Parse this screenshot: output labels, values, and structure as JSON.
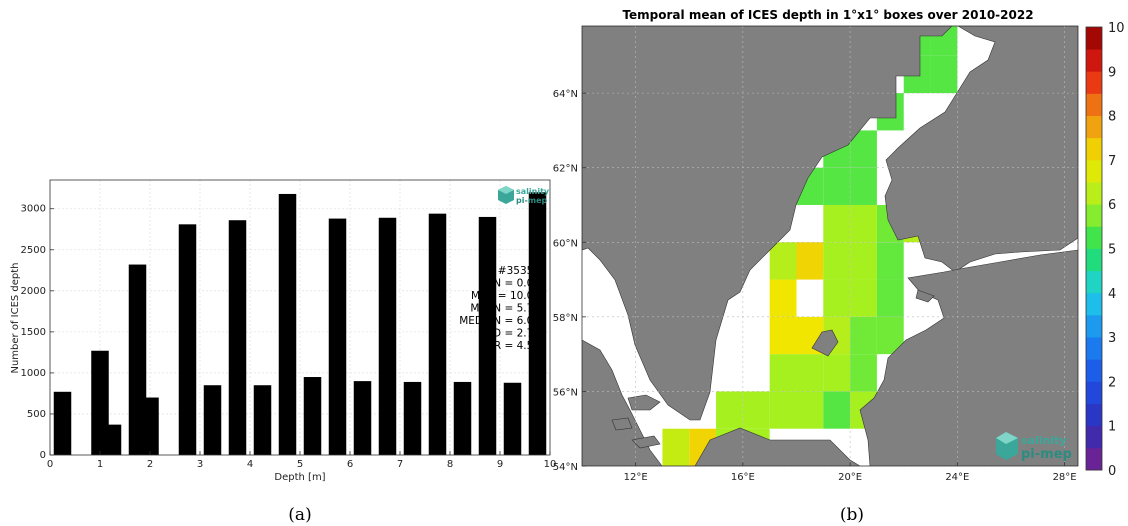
{
  "chart_data": [
    {
      "type": "bar",
      "xlabel": "Depth [m]",
      "ylabel": "Number of ICES depth",
      "xlim": [
        0,
        10
      ],
      "ylim": [
        0,
        3350
      ],
      "x_ticks": [
        "0",
        "1",
        "2",
        "3",
        "4",
        "5",
        "6",
        "7",
        "8",
        "9",
        "10"
      ],
      "y_ticks": [
        "0",
        "500",
        "1000",
        "1500",
        "2000",
        "2500",
        "3000"
      ],
      "grid": true,
      "bar_width": 0.35,
      "bins_center": [
        0.25,
        1.0,
        1.25,
        1.75,
        2.0,
        2.75,
        3.25,
        3.75,
        4.25,
        4.75,
        5.25,
        5.75,
        6.25,
        6.75,
        7.25,
        7.75,
        8.25,
        8.75,
        9.25,
        9.75
      ],
      "values": [
        770,
        1270,
        370,
        2320,
        700,
        2810,
        850,
        2860,
        850,
        3180,
        950,
        2880,
        900,
        2890,
        890,
        2940,
        890,
        2900,
        880,
        3200
      ],
      "stats": [
        "#35355",
        "MIN = 0.00",
        "MAX = 10.00",
        "MEAN = 5.74",
        "MEDIAN = 6.00",
        "STD = 2.75",
        "IQR = 4.50"
      ],
      "logo": {
        "line1": "salinity",
        "line2": "pi-mep"
      },
      "caption": "(a)"
    },
    {
      "type": "heatmap",
      "title": "Temporal mean of ICES depth in 1°x1° boxes over 2010-2022",
      "x_ticks": [
        "12°E",
        "16°E",
        "20°E",
        "24°E",
        "28°E"
      ],
      "y_ticks": [
        "54°N",
        "56°N",
        "58°N",
        "60°N",
        "62°N",
        "64°N"
      ],
      "lon_range": [
        10,
        28.5
      ],
      "lat_range": [
        54,
        65.8
      ],
      "colorbar": {
        "min": 0,
        "max": 10,
        "ticks": [
          "0",
          "1",
          "2",
          "3",
          "4",
          "5",
          "6",
          "7",
          "8",
          "9",
          "10"
        ]
      },
      "cells": [
        {
          "lon": 13.5,
          "lat": 54.5,
          "v": 6.4
        },
        {
          "lon": 14.5,
          "lat": 54.5,
          "v": 7.2
        },
        {
          "lon": 15.5,
          "lat": 54.5,
          "v": 6.0
        },
        {
          "lon": 16.5,
          "lat": 54.5,
          "v": 6.0
        },
        {
          "lon": 15.5,
          "lat": 55.5,
          "v": 6.0
        },
        {
          "lon": 16.5,
          "lat": 55.5,
          "v": 6.0
        },
        {
          "lon": 17.5,
          "lat": 55.5,
          "v": 6.0
        },
        {
          "lon": 18.5,
          "lat": 55.5,
          "v": 6.0
        },
        {
          "lon": 19.5,
          "lat": 55.5,
          "v": 5.4
        },
        {
          "lon": 20.5,
          "lat": 55.5,
          "v": 6.0
        },
        {
          "lon": 17.5,
          "lat": 56.5,
          "v": 6.0
        },
        {
          "lon": 18.5,
          "lat": 56.5,
          "v": 6.0
        },
        {
          "lon": 19.5,
          "lat": 56.5,
          "v": 6.0
        },
        {
          "lon": 20.5,
          "lat": 56.5,
          "v": 5.6
        },
        {
          "lon": 17.5,
          "lat": 57.5,
          "v": 7.0
        },
        {
          "lon": 18.5,
          "lat": 57.5,
          "v": 7.0
        },
        {
          "lon": 19.5,
          "lat": 57.5,
          "v": 6.2
        },
        {
          "lon": 20.5,
          "lat": 57.5,
          "v": 5.6
        },
        {
          "lon": 21.5,
          "lat": 57.5,
          "v": 5.6
        },
        {
          "lon": 17.5,
          "lat": 58.5,
          "v": 7.0
        },
        {
          "lon": 19.5,
          "lat": 58.5,
          "v": 6.0
        },
        {
          "lon": 20.5,
          "lat": 58.5,
          "v": 6.0
        },
        {
          "lon": 21.5,
          "lat": 58.5,
          "v": 5.5
        },
        {
          "lon": 17.5,
          "lat": 59.5,
          "v": 6.2
        },
        {
          "lon": 18.5,
          "lat": 59.5,
          "v": 7.2
        },
        {
          "lon": 19.5,
          "lat": 59.5,
          "v": 6.0
        },
        {
          "lon": 20.5,
          "lat": 59.5,
          "v": 6.0
        },
        {
          "lon": 21.5,
          "lat": 59.5,
          "v": 5.5
        },
        {
          "lon": 19.5,
          "lat": 60.5,
          "v": 6.0
        },
        {
          "lon": 20.5,
          "lat": 60.5,
          "v": 6.0
        },
        {
          "lon": 21.5,
          "lat": 60.5,
          "v": 5.6
        },
        {
          "lon": 22.5,
          "lat": 60.5,
          "v": 6.2
        },
        {
          "lon": 18.5,
          "lat": 61.5,
          "v": 5.4
        },
        {
          "lon": 19.5,
          "lat": 61.5,
          "v": 5.4
        },
        {
          "lon": 20.5,
          "lat": 61.5,
          "v": 5.4
        },
        {
          "lon": 19.5,
          "lat": 62.5,
          "v": 5.4
        },
        {
          "lon": 20.5,
          "lat": 62.5,
          "v": 5.4
        },
        {
          "lon": 21.5,
          "lat": 63.5,
          "v": 5.4
        },
        {
          "lon": 22.5,
          "lat": 64.5,
          "v": 5.4
        },
        {
          "lon": 23.5,
          "lat": 64.5,
          "v": 5.4
        },
        {
          "lon": 22.5,
          "lat": 65.5,
          "v": 5.4
        },
        {
          "lon": 23.5,
          "lat": 65.5,
          "v": 5.4
        }
      ],
      "logo": {
        "line1": "salinity",
        "line2": "pi-mep"
      },
      "caption": "(b)"
    }
  ]
}
